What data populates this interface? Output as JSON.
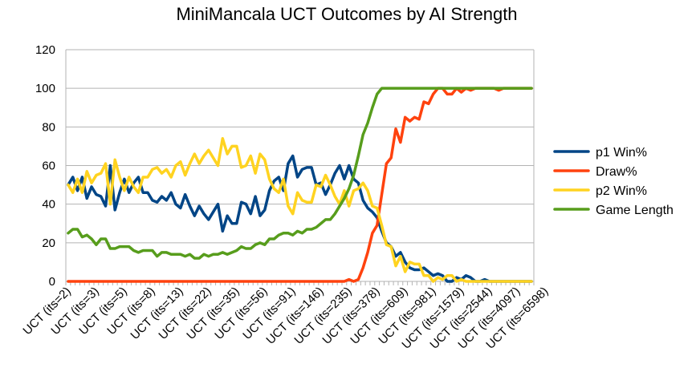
{
  "chart_data": {
    "type": "line",
    "title": "MiniMancala UCT Outcomes by AI Strength",
    "xlabel": "",
    "ylabel": "",
    "ylim": [
      0,
      120
    ],
    "yticks": [
      0,
      20,
      40,
      60,
      80,
      100,
      120
    ],
    "grid": "horizontal",
    "legend": "right",
    "categories_count": 100,
    "x_tick_labels": [
      "UCT (its=2)",
      "UCT (its=3)",
      "UCT (its=5)",
      "UCT (its=8)",
      "UCT (its=13)",
      "UCT (its=22)",
      "UCT (its=35)",
      "UCT (its=56)",
      "UCT (its=91)",
      "UCT (its=146)",
      "UCT (its=235)",
      "UCT (its=378)",
      "UCT (its=609)",
      "UCT (its=981)",
      "UCT (its=1579)",
      "UCT (its=2544)",
      "UCT (its=4097)",
      "UCT (its=6598)"
    ],
    "series": [
      {
        "name": "p1 Win%",
        "color": "#004586",
        "values": [
          50,
          54,
          47,
          54,
          43,
          49,
          45,
          44,
          39,
          60,
          37,
          46,
          53,
          46,
          51,
          54,
          46,
          46,
          42,
          41,
          44,
          42,
          46,
          40,
          38,
          45,
          39,
          34,
          39,
          35,
          32,
          36,
          40,
          26,
          34,
          30,
          30,
          41,
          40,
          35,
          44,
          34,
          37,
          47,
          52,
          54,
          47,
          61,
          65,
          54,
          58,
          59,
          59,
          50,
          51,
          45,
          50,
          56,
          60,
          53,
          60,
          53,
          51,
          42,
          38,
          36,
          33,
          26,
          20,
          18,
          13,
          15,
          10,
          7,
          6,
          6,
          7,
          5,
          3,
          4,
          3,
          0,
          0,
          2,
          1,
          3,
          2,
          0,
          0,
          1,
          0,
          0,
          0,
          0,
          0,
          0,
          0,
          0,
          0,
          0
        ]
      },
      {
        "name": "Draw%",
        "color": "#ff420e",
        "values": [
          0,
          0,
          0,
          0,
          0,
          0,
          0,
          0,
          0,
          0,
          0,
          0,
          0,
          0,
          0,
          0,
          0,
          0,
          0,
          0,
          0,
          0,
          0,
          0,
          0,
          0,
          0,
          0,
          0,
          0,
          0,
          0,
          0,
          0,
          0,
          0,
          0,
          0,
          0,
          0,
          0,
          0,
          0,
          0,
          0,
          0,
          0,
          0,
          0,
          0,
          0,
          0,
          0,
          0,
          0,
          0,
          0,
          0,
          0,
          0,
          1,
          0,
          1,
          7,
          15,
          25,
          29,
          45,
          61,
          64,
          79,
          72,
          85,
          83,
          85,
          84,
          93,
          92,
          97,
          100,
          100,
          97,
          97,
          100,
          98,
          100,
          99,
          100,
          100,
          100,
          100,
          100,
          99,
          100,
          100,
          100,
          100,
          100,
          100,
          100
        ]
      },
      {
        "name": "p2 Win%",
        "color": "#ffd320",
        "values": [
          50,
          46,
          53,
          46,
          57,
          51,
          55,
          56,
          61,
          40,
          63,
          54,
          47,
          54,
          49,
          46,
          54,
          54,
          58,
          59,
          56,
          58,
          54,
          60,
          62,
          55,
          61,
          66,
          61,
          65,
          68,
          64,
          60,
          74,
          66,
          70,
          70,
          59,
          60,
          65,
          56,
          66,
          63,
          53,
          48,
          46,
          53,
          39,
          35,
          46,
          42,
          41,
          41,
          50,
          49,
          55,
          50,
          44,
          40,
          47,
          39,
          47,
          48,
          51,
          47,
          39,
          38,
          29,
          19,
          18,
          8,
          13,
          5,
          10,
          9,
          9,
          3,
          3,
          0,
          2,
          1,
          3,
          3,
          0,
          1,
          0,
          0,
          0,
          0,
          0,
          0,
          0,
          0,
          0,
          0,
          0,
          0,
          0,
          0,
          0
        ]
      },
      {
        "name": "Game Length",
        "color": "#579d1c",
        "values": [
          25,
          27,
          27,
          23,
          24,
          22,
          19,
          22,
          22,
          17,
          17,
          18,
          18,
          18,
          16,
          15,
          16,
          16,
          16,
          13,
          15,
          15,
          14,
          14,
          14,
          13,
          14,
          12,
          12,
          14,
          13,
          14,
          14,
          15,
          14,
          15,
          16,
          18,
          17,
          17,
          19,
          20,
          19,
          22,
          22,
          24,
          25,
          25,
          24,
          26,
          25,
          27,
          27,
          28,
          30,
          32,
          32,
          35,
          39,
          43,
          48,
          55,
          65,
          76,
          82,
          90,
          97,
          100,
          100,
          100,
          100,
          100,
          100,
          100,
          100,
          100,
          100,
          100,
          100,
          100,
          100,
          100,
          100,
          100,
          100,
          100,
          100,
          100,
          100,
          100,
          100,
          100,
          100,
          100,
          100,
          100,
          100,
          100,
          100,
          100
        ]
      }
    ]
  }
}
